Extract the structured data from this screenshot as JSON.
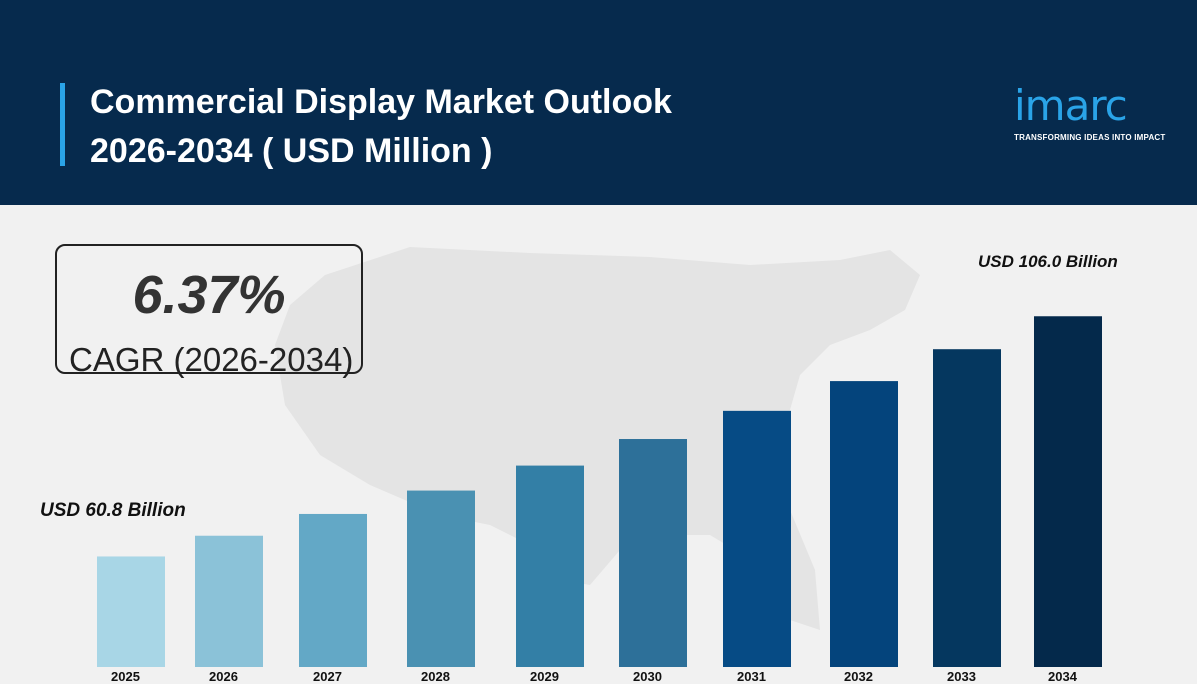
{
  "header": {
    "title_line1": "Commercial Display Market Outlook",
    "title_line2": "2026-2034 ( USD Million )"
  },
  "logo": {
    "word": "imarc",
    "tagline": "TRANSFORMING IDEAS INTO IMPACT"
  },
  "cagr": {
    "value": "6.37%",
    "label": "CAGR (2026-2034)"
  },
  "annotations": {
    "start": "USD 60.8 Billion",
    "end": "USD 106.0 Billion"
  },
  "colors": {
    "header_bg": "#062a4d",
    "accent": "#2aa4e8",
    "background": "#f1f1f1",
    "bars": [
      "#a8d6e6",
      "#8bc2d8",
      "#63a8c6",
      "#4a91b2",
      "#337fa6",
      "#2d7099",
      "#064b85",
      "#04447c",
      "#05375f",
      "#04294b"
    ]
  },
  "chart_data": {
    "type": "bar",
    "categories": [
      "2025",
      "2026",
      "2027",
      "2028",
      "2029",
      "2030",
      "2031",
      "2032",
      "2033",
      "2034"
    ],
    "values": [
      60.8,
      64.7,
      68.8,
      73.2,
      77.9,
      82.9,
      88.2,
      93.8,
      99.8,
      106.0
    ],
    "title": "Commercial Display Market Outlook 2026-2034 ( USD Million )",
    "xlabel": "",
    "ylabel": "",
    "ylim": [
      40,
      110
    ],
    "grid": false,
    "legend": "none"
  }
}
